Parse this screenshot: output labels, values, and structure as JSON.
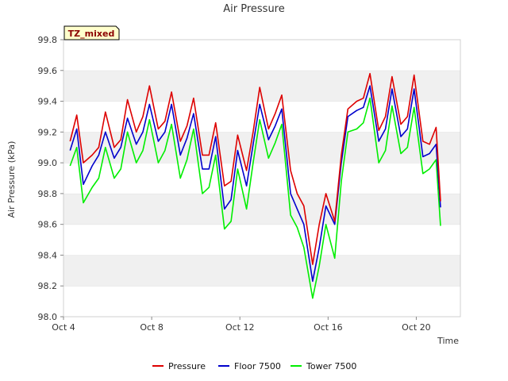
{
  "chart_data": {
    "type": "line",
    "title": "Air Pressure",
    "xlabel": "Time",
    "ylabel": "Air Pressure (kPa)",
    "badge": "TZ_mixed",
    "x_ticks": [
      "Oct 4",
      "Oct 8",
      "Oct 12",
      "Oct 16",
      "Oct 20"
    ],
    "y_ticks": [
      "98.0",
      "98.2",
      "98.4",
      "98.6",
      "98.8",
      "99.0",
      "99.2",
      "99.4",
      "99.6",
      "99.8"
    ],
    "xlim_days": [
      4,
      22
    ],
    "ylim": [
      98.0,
      99.8
    ],
    "grid": "horizontal alternating bands",
    "legend_position": "bottom",
    "colors": {
      "Pressure": "#dd0000",
      "Floor 7500": "#0000cc",
      "Tower 7500": "#00ee00"
    },
    "x": [
      "Oct 4.3",
      "Oct 4.6",
      "Oct 4.9",
      "Oct 5.3",
      "Oct 5.6",
      "Oct 5.9",
      "Oct 6.3",
      "Oct 6.6",
      "Oct 6.9",
      "Oct 7.3",
      "Oct 7.6",
      "Oct 7.9",
      "Oct 8.3",
      "Oct 8.6",
      "Oct 8.9",
      "Oct 9.3",
      "Oct 9.6",
      "Oct 9.9",
      "Oct 10.3",
      "Oct 10.6",
      "Oct 10.9",
      "Oct 11.3",
      "Oct 11.6",
      "Oct 11.9",
      "Oct 12.3",
      "Oct 12.6",
      "Oct 12.9",
      "Oct 13.3",
      "Oct 13.6",
      "Oct 13.9",
      "Oct 14.3",
      "Oct 14.6",
      "Oct 14.9",
      "Oct 15.3",
      "Oct 15.6",
      "Oct 15.9",
      "Oct 16.3",
      "Oct 16.6",
      "Oct 16.9",
      "Oct 17.3",
      "Oct 17.6",
      "Oct 17.9",
      "Oct 18.3",
      "Oct 18.6",
      "Oct 18.9",
      "Oct 19.3",
      "Oct 19.6",
      "Oct 19.9",
      "Oct 20.3",
      "Oct 20.6",
      "Oct 20.9",
      "Oct 21.1"
    ],
    "series": [
      {
        "name": "Pressure",
        "values": [
          99.14,
          99.31,
          99.0,
          99.05,
          99.1,
          99.33,
          99.1,
          99.15,
          99.41,
          99.2,
          99.3,
          99.5,
          99.22,
          99.27,
          99.46,
          99.14,
          99.24,
          99.42,
          99.05,
          99.05,
          99.26,
          98.85,
          98.88,
          99.18,
          98.95,
          99.2,
          99.49,
          99.22,
          99.32,
          99.44,
          98.95,
          98.8,
          98.72,
          98.34,
          98.6,
          98.8,
          98.62,
          99.05,
          99.35,
          99.4,
          99.42,
          99.58,
          99.21,
          99.3,
          99.56,
          99.25,
          99.3,
          99.57,
          99.14,
          99.12,
          99.23,
          98.75
        ]
      },
      {
        "name": "Floor 7500",
        "values": [
          99.08,
          99.22,
          98.86,
          98.98,
          99.05,
          99.2,
          99.03,
          99.1,
          99.29,
          99.12,
          99.2,
          99.38,
          99.14,
          99.2,
          99.38,
          99.05,
          99.16,
          99.32,
          98.96,
          98.96,
          99.17,
          98.7,
          98.76,
          99.08,
          98.85,
          99.12,
          99.38,
          99.15,
          99.24,
          99.35,
          98.8,
          98.7,
          98.6,
          98.23,
          98.45,
          98.72,
          98.6,
          99.0,
          99.3,
          99.34,
          99.36,
          99.5,
          99.14,
          99.22,
          99.48,
          99.17,
          99.22,
          99.48,
          99.04,
          99.06,
          99.12,
          98.71
        ]
      },
      {
        "name": "Tower 7500",
        "values": [
          98.98,
          99.1,
          98.74,
          98.84,
          98.9,
          99.1,
          98.9,
          98.96,
          99.2,
          99.0,
          99.08,
          99.28,
          99.0,
          99.08,
          99.25,
          98.9,
          99.02,
          99.22,
          98.8,
          98.84,
          99.05,
          98.57,
          98.62,
          98.96,
          98.7,
          99.0,
          99.28,
          99.03,
          99.13,
          99.25,
          98.66,
          98.58,
          98.45,
          98.12,
          98.33,
          98.6,
          98.38,
          98.88,
          99.2,
          99.22,
          99.26,
          99.42,
          99.0,
          99.08,
          99.37,
          99.06,
          99.1,
          99.36,
          98.93,
          98.96,
          99.02,
          98.59
        ]
      }
    ]
  }
}
